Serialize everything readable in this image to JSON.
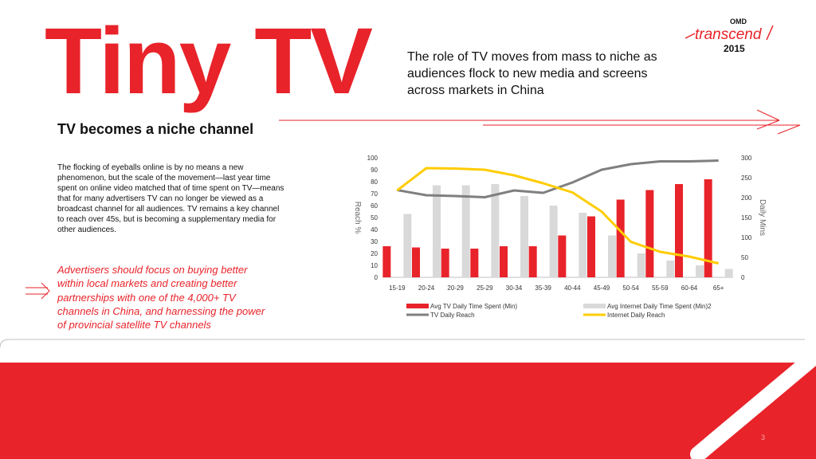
{
  "slide": {
    "title": "Tiny TV",
    "tagline": "The role of TV moves from mass to niche as audiences flock to new media and screens across markets in China",
    "subtitle": "TV becomes a niche channel",
    "body": "The flocking of eyeballs online is by no means a new phenomenon, but the scale of the movement—last year time spent on online video matched that of time spent on TV—means that for many advertisers TV can no longer be viewed as a broadcast channel for all audiences. TV remains a key channel to reach over 45s, but is becoming a supplementary media for other audiences.",
    "callout": "Advertisers should focus on buying better within local markets and creating better partnerships with one of the 4,000+ TV channels in China, and harnessing the power of provincial satellite TV channels",
    "page_number": "3"
  },
  "logo": {
    "top": "OMD",
    "main": "transcend",
    "year": "2015"
  },
  "colors": {
    "red": "#e8232a",
    "gray_bar": "#d9d9d9",
    "tv_line": "#7f7f7f",
    "internet_line": "#ffcc00"
  },
  "chart_data": {
    "type": "bar",
    "categories": [
      "15-19",
      "20-24",
      "20-29",
      "25-29",
      "30-34",
      "35-39",
      "40-44",
      "45-49",
      "50-54",
      "55-59",
      "60-64",
      "65+"
    ],
    "y_left": {
      "label": "Reach %",
      "range": [
        0,
        100
      ],
      "ticks": [
        "0",
        "10",
        "20",
        "30",
        "40",
        "50",
        "60",
        "70",
        "80",
        "90",
        "100"
      ]
    },
    "y_right": {
      "label": "Daily Mins",
      "range": [
        0,
        300
      ],
      "ticks": [
        "0",
        "50",
        "100",
        "150",
        "200",
        "250",
        "300"
      ]
    },
    "series": [
      {
        "name": "Avg TV  Daily Time Spent (Min)",
        "type": "bar",
        "axis": "left",
        "color": "#e8232a",
        "values": [
          26,
          25,
          24,
          24,
          26,
          26,
          35,
          51,
          65,
          73,
          78,
          82
        ]
      },
      {
        "name": "Avg Internet Daily Time Spent (Min)2",
        "type": "bar",
        "axis": "left",
        "color": "#d9d9d9",
        "values": [
          53,
          77,
          77,
          78,
          68,
          60,
          54,
          35,
          20,
          14,
          10,
          7
        ]
      },
      {
        "name": "TV Daily Reach",
        "type": "line",
        "axis": "right",
        "color": "#7f7f7f",
        "values": [
          219,
          206,
          204,
          201,
          218,
          212,
          238,
          270,
          284,
          291,
          291,
          293
        ]
      },
      {
        "name": "Internet Daily Reach",
        "type": "line",
        "axis": "right",
        "color": "#ffcc00",
        "values": [
          218,
          274,
          273,
          270,
          256,
          236,
          213,
          165,
          89,
          64,
          52,
          35
        ]
      }
    ],
    "legend_position": "bottom"
  }
}
